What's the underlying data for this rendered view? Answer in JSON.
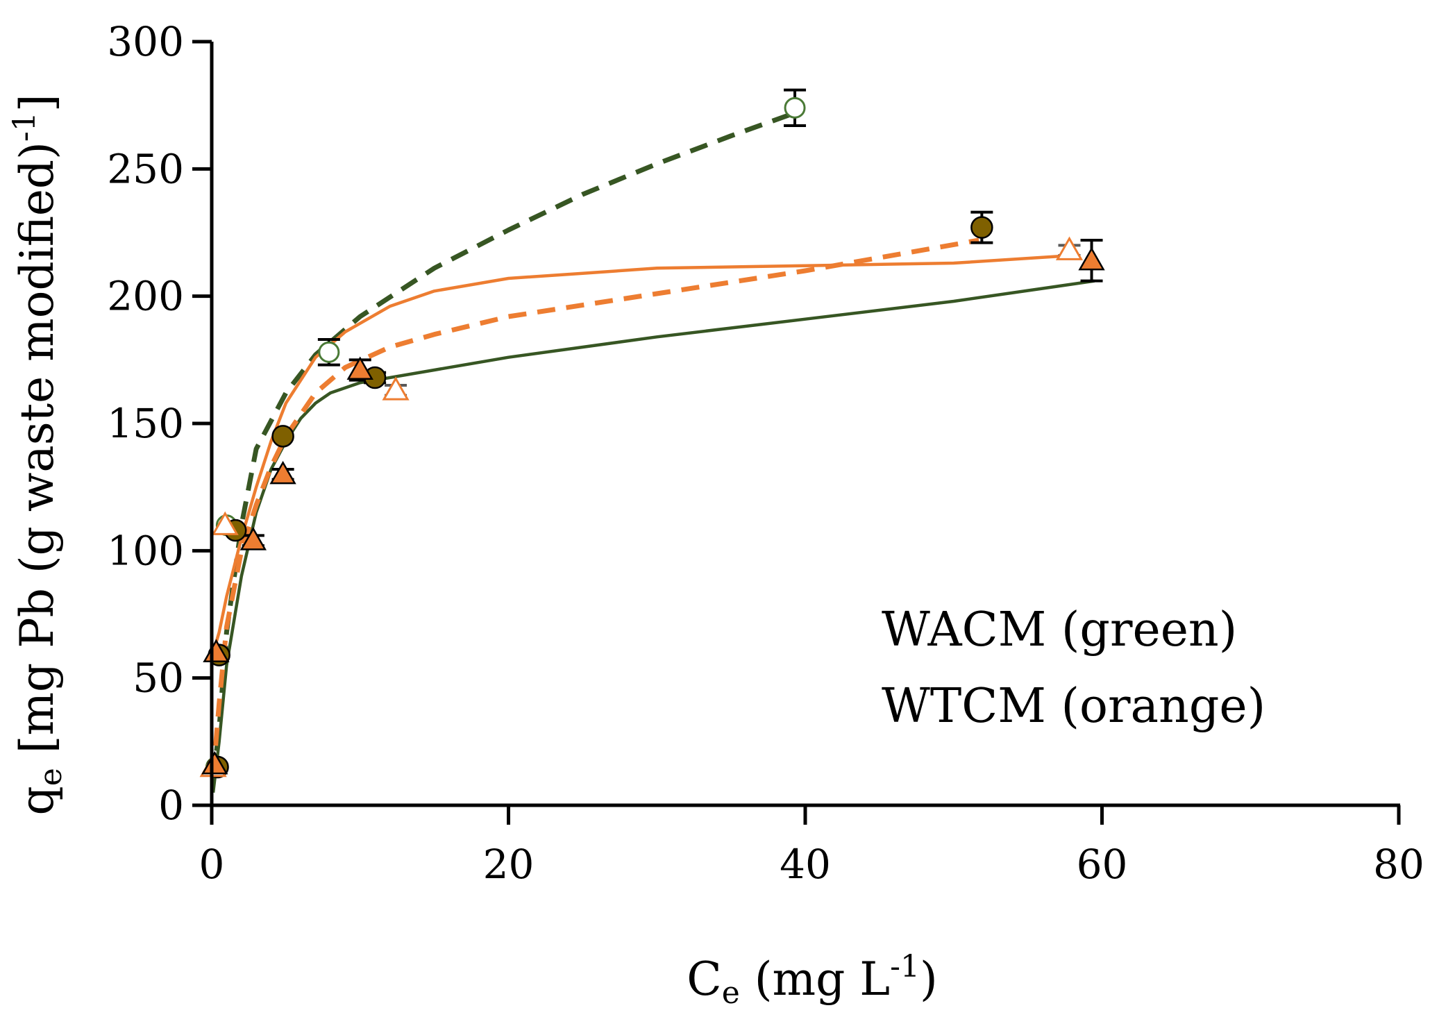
{
  "chart_data": {
    "type": "scatter",
    "title": "",
    "xlabel": {
      "main": "C",
      "sub": "e",
      "rest": " (mg L",
      "sup": "-1",
      "end": ")"
    },
    "ylabel": {
      "main": "q",
      "sub": "e",
      "rest": " [mg Pb (g waste modified)",
      "sup": "-1",
      "end": "]"
    },
    "xlim": [
      0,
      80
    ],
    "ylim": [
      0,
      300
    ],
    "x_ticks": [
      0,
      20,
      40,
      60,
      80
    ],
    "y_ticks": [
      0,
      50,
      100,
      150,
      200,
      250,
      300
    ],
    "x_tick_labels": [
      "0",
      "20",
      "40",
      "60",
      "80"
    ],
    "y_tick_labels": [
      "0",
      "50",
      "100",
      "150",
      "200",
      "250",
      "300"
    ],
    "grid": false,
    "annotations": [
      "WACM (green)",
      "WTCM (orange)"
    ],
    "colors": {
      "green_dark": "#375623",
      "green_open": "#4a7a36",
      "brown_fill": "#7f6000",
      "orange": "#ed7d31",
      "axis": "#000000",
      "errorbar": "#000000",
      "errorbar_gray": "#595959"
    },
    "series": [
      {
        "marker": "circle-open",
        "color": "#4a7a36",
        "points": [
          {
            "x": 0.3,
            "y": 15,
            "err": 0
          },
          {
            "x": 1.0,
            "y": 110,
            "err": 0
          },
          {
            "x": 7.9,
            "y": 178,
            "err": 5
          },
          {
            "x": 39.3,
            "y": 274,
            "err": 7
          }
        ]
      },
      {
        "marker": "circle-filled",
        "color": "#7f6000",
        "points": [
          {
            "x": 0.4,
            "y": 15,
            "err": 0
          },
          {
            "x": 0.5,
            "y": 59,
            "err": 0
          },
          {
            "x": 1.6,
            "y": 108,
            "err": 0
          },
          {
            "x": 4.8,
            "y": 145,
            "err": 0
          },
          {
            "x": 11.0,
            "y": 168,
            "err": 2
          },
          {
            "x": 51.9,
            "y": 227,
            "err": 6
          }
        ]
      },
      {
        "marker": "triangle-open",
        "color": "#ed7d31",
        "points": [
          {
            "x": 0.1,
            "y": 15,
            "err": 0
          },
          {
            "x": 0.9,
            "y": 110,
            "err": 0
          },
          {
            "x": 12.4,
            "y": 163,
            "err": 2
          },
          {
            "x": 57.8,
            "y": 218,
            "err": 2
          }
        ]
      },
      {
        "marker": "triangle-filled",
        "color": "#ed7d31",
        "points": [
          {
            "x": 0.2,
            "y": 16,
            "err": 0
          },
          {
            "x": 0.3,
            "y": 60,
            "err": 0
          },
          {
            "x": 2.8,
            "y": 104,
            "err": 2
          },
          {
            "x": 4.8,
            "y": 130,
            "err": 2
          },
          {
            "x": 10.0,
            "y": 171,
            "err": 4
          },
          {
            "x": 59.3,
            "y": 214,
            "err": 8
          }
        ]
      }
    ],
    "fits": [
      {
        "style": "dashed",
        "color": "#375623",
        "points": [
          [
            0.1,
            10
          ],
          [
            0.5,
            30
          ],
          [
            1,
            68
          ],
          [
            2,
            110
          ],
          [
            3,
            140
          ],
          [
            5,
            162
          ],
          [
            7,
            177
          ],
          [
            10,
            192
          ],
          [
            15,
            211
          ],
          [
            20,
            226
          ],
          [
            25,
            240
          ],
          [
            30,
            252
          ],
          [
            35,
            263
          ],
          [
            39.3,
            272
          ]
        ]
      },
      {
        "style": "solid",
        "color": "#375623",
        "points": [
          [
            0.1,
            5
          ],
          [
            0.5,
            25
          ],
          [
            1,
            55
          ],
          [
            2,
            90
          ],
          [
            3,
            115
          ],
          [
            4,
            132
          ],
          [
            5,
            143
          ],
          [
            6,
            152
          ],
          [
            7,
            158
          ],
          [
            8,
            162
          ],
          [
            10,
            166
          ],
          [
            15,
            171
          ],
          [
            20,
            176
          ],
          [
            30,
            184
          ],
          [
            40,
            191
          ],
          [
            50,
            198
          ],
          [
            59.5,
            206
          ]
        ]
      },
      {
        "style": "solid",
        "color": "#ed7d31",
        "points": [
          [
            0,
            58
          ],
          [
            0.5,
            68
          ],
          [
            1,
            82
          ],
          [
            2,
            105
          ],
          [
            3,
            125
          ],
          [
            4,
            143
          ],
          [
            5,
            158
          ],
          [
            7,
            176
          ],
          [
            9,
            186
          ],
          [
            12,
            196
          ],
          [
            15,
            202
          ],
          [
            20,
            207
          ],
          [
            25,
            209
          ],
          [
            30,
            211
          ],
          [
            40,
            212
          ],
          [
            50,
            213
          ],
          [
            58,
            216
          ]
        ]
      },
      {
        "style": "dashed",
        "color": "#ed7d31",
        "points": [
          [
            0.1,
            12
          ],
          [
            0.5,
            40
          ],
          [
            1,
            70
          ],
          [
            2,
            100
          ],
          [
            3,
            118
          ],
          [
            4,
            133
          ],
          [
            5,
            145
          ],
          [
            7,
            162
          ],
          [
            9,
            172
          ],
          [
            12,
            180
          ],
          [
            15,
            185
          ],
          [
            20,
            192
          ],
          [
            30,
            201
          ],
          [
            40,
            210
          ],
          [
            51.7,
            222
          ]
        ]
      }
    ]
  }
}
